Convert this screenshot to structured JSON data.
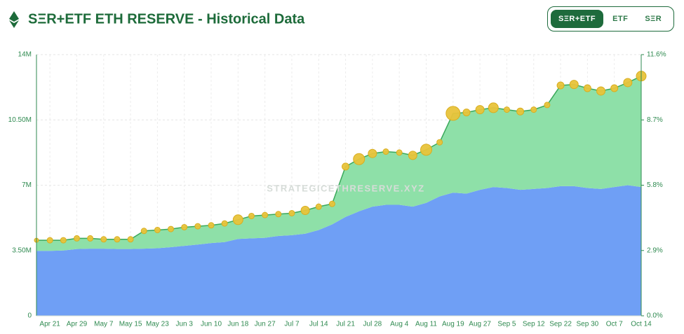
{
  "chart_data": {
    "type": "stacked_area",
    "title": "SΞR+ETF ETH RESERVE - Historical Data",
    "toggle_all": "SΞR+ETF",
    "active_toggle": 0,
    "watermark": "STRATEGICETHRESERVE.XYZ",
    "categories": [
      null,
      "Apr 21",
      null,
      "Apr 29",
      null,
      "May 7",
      null,
      "May 15",
      null,
      "May 23",
      null,
      "Jun 3",
      null,
      "Jun 10",
      null,
      "Jun 18",
      null,
      "Jun 27",
      null,
      "Jul 7",
      null,
      "Jul 14",
      null,
      "Jul 21",
      null,
      "Jul 28",
      null,
      "Aug 4",
      null,
      "Aug 11",
      null,
      "Aug 19",
      null,
      "Aug 27",
      null,
      "Sep 5",
      null,
      "Sep 12",
      null,
      "Sep 22",
      null,
      "Sep 30",
      null,
      "Oct 7",
      null,
      "Oct 14"
    ],
    "series": [
      {
        "name": "ETF",
        "color": "#6f9ff5",
        "values": [
          3480000,
          3480000,
          3500000,
          3580000,
          3600000,
          3600000,
          3580000,
          3580000,
          3600000,
          3620000,
          3680000,
          3750000,
          3820000,
          3900000,
          3950000,
          4120000,
          4150000,
          4180000,
          4280000,
          4320000,
          4400000,
          4600000,
          4900000,
          5300000,
          5600000,
          5850000,
          5950000,
          5950000,
          5850000,
          6050000,
          6400000,
          6600000,
          6550000,
          6750000,
          6900000,
          6850000,
          6750000,
          6800000,
          6850000,
          6950000,
          6950000,
          6850000,
          6800000,
          6900000,
          7000000,
          6900000
        ]
      },
      {
        "name": "SΞR",
        "color": "#8ee0a8",
        "line_color": "#3aa85a",
        "marker_color": "#e8c33a",
        "values": [
          570000,
          570000,
          550000,
          570000,
          550000,
          500000,
          520000,
          520000,
          950000,
          980000,
          970000,
          1000000,
          980000,
          950000,
          1000000,
          1030000,
          1200000,
          1220000,
          1170000,
          1180000,
          1250000,
          1250000,
          1100000,
          2700000,
          2800000,
          2850000,
          2850000,
          2800000,
          2750000,
          2850000,
          2900000,
          4250000,
          4350000,
          4300000,
          4250000,
          4200000,
          4200000,
          4250000,
          4450000,
          5400000,
          5450000,
          5350000,
          5250000,
          5300000,
          5500000,
          5950000
        ],
        "sizes": [
          3,
          4,
          4,
          4,
          4,
          4,
          4,
          4,
          4,
          4,
          4,
          4,
          4,
          4,
          4,
          7,
          4,
          4,
          4,
          4,
          6,
          4,
          4,
          5,
          8,
          6,
          4,
          4,
          6,
          8,
          4,
          10,
          5,
          6,
          7,
          4,
          5,
          4,
          4,
          5,
          6,
          5,
          6,
          5,
          6,
          7
        ]
      }
    ],
    "ylim": [
      0,
      14000000
    ],
    "yticks": [
      0,
      {
        "value": 3500000,
        "label": "3.50M"
      },
      {
        "value": 7000000,
        "label": "7M"
      },
      {
        "value": 10500000,
        "label": "10.50M"
      },
      {
        "value": 14000000,
        "label": "14M"
      }
    ],
    "y2lim": [
      0,
      11.6
    ],
    "y2ticks": [
      {
        "value": 0,
        "label": "0.0%"
      },
      {
        "value": 2.9,
        "label": "2.9%"
      },
      {
        "value": 5.8,
        "label": "5.8%"
      },
      {
        "value": 8.7,
        "label": "8.7%"
      },
      {
        "value": 11.6,
        "label": "11.6%"
      }
    ],
    "grid": true
  }
}
